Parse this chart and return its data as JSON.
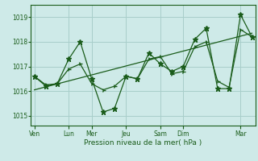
{
  "xlabel": "Pression niveau de la mer( hPa )",
  "bg_color": "#ceeae8",
  "grid_color": "#a8ceca",
  "line_color": "#1a5c1a",
  "ylim": [
    1014.6,
    1019.5
  ],
  "yticks": [
    1015,
    1016,
    1017,
    1018,
    1019
  ],
  "x_tick_labels": [
    "Ven",
    "Lun",
    "Mer",
    "Jeu",
    "Sam",
    "Dim",
    "Mar"
  ],
  "x_tick_positions": [
    0,
    3,
    5,
    8,
    11,
    13,
    18
  ],
  "xlim": [
    -0.3,
    19.3
  ],
  "series1_x": [
    0,
    1,
    2,
    3,
    4,
    5,
    6,
    7,
    8,
    9,
    10,
    11,
    12,
    13,
    14,
    15,
    16,
    17,
    18,
    19
  ],
  "series1_y": [
    1016.6,
    1016.2,
    1016.3,
    1017.3,
    1018.0,
    1016.5,
    1015.15,
    1015.3,
    1016.6,
    1016.5,
    1017.55,
    1017.1,
    1016.8,
    1017.0,
    1018.1,
    1018.55,
    1016.1,
    1016.1,
    1019.1,
    1018.2
  ],
  "series2_x": [
    0,
    1,
    2,
    3,
    4,
    5,
    6,
    7,
    8,
    9,
    10,
    11,
    12,
    13,
    14,
    15,
    16,
    17,
    18,
    19
  ],
  "series2_y": [
    1016.6,
    1016.25,
    1016.3,
    1016.9,
    1017.1,
    1016.3,
    1016.05,
    1016.2,
    1016.6,
    1016.5,
    1017.3,
    1017.4,
    1016.7,
    1016.8,
    1017.8,
    1018.0,
    1016.4,
    1016.15,
    1018.5,
    1018.2
  ],
  "trend_x": [
    0,
    19
  ],
  "trend_y": [
    1016.05,
    1018.35
  ]
}
